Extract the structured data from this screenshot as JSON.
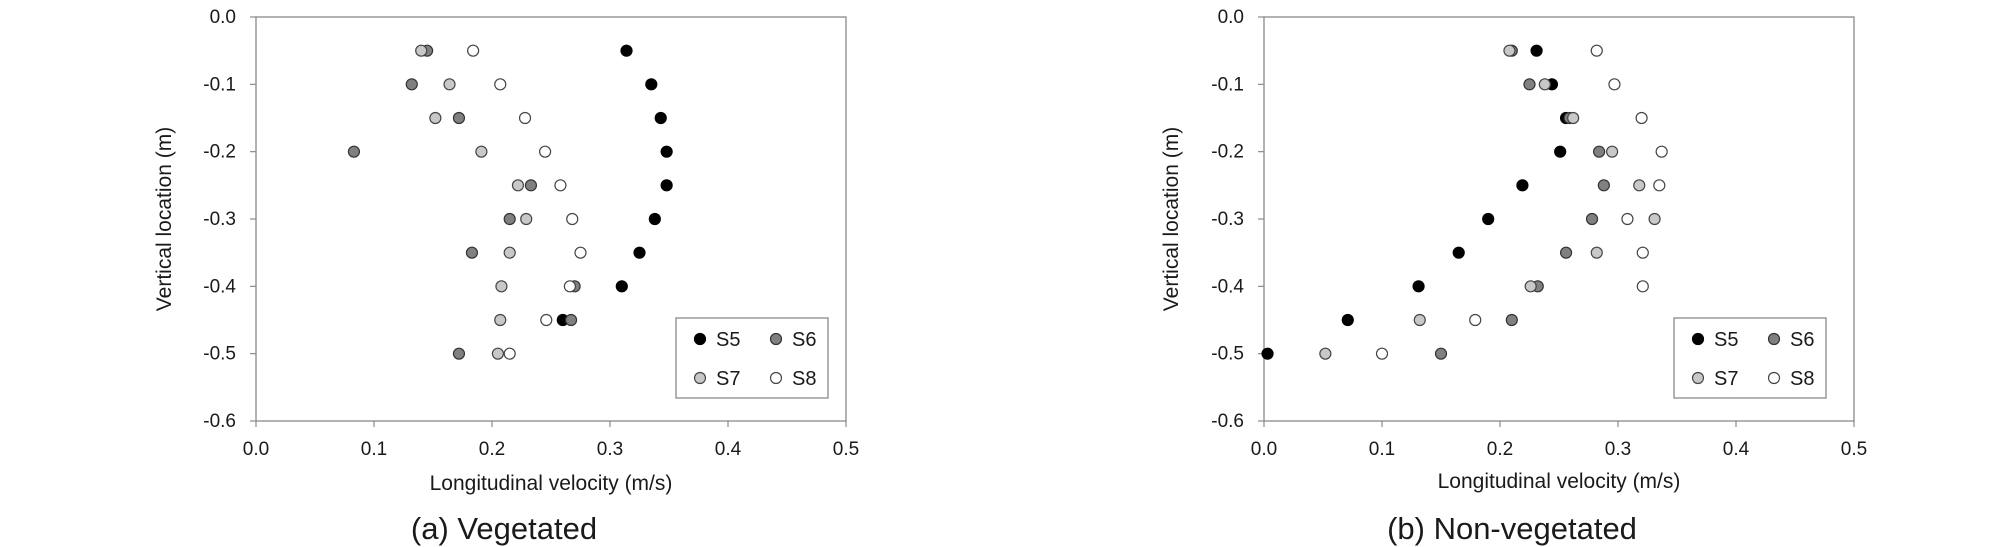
{
  "chart_data": [
    {
      "type": "scatter",
      "caption": "(a) Vegetated",
      "xlabel": "Longitudinal velocity (m/s)",
      "ylabel": "Vertical location (m)",
      "xlim": [
        0,
        0.5
      ],
      "ylim": [
        -0.6,
        0
      ],
      "xticks": [
        "0.0",
        "0.1",
        "0.2",
        "0.3",
        "0.4",
        "0.5"
      ],
      "yticks": [
        "0.0",
        "-0.1",
        "-0.2",
        "-0.3",
        "-0.4",
        "-0.5",
        "-0.6"
      ],
      "grid": false,
      "legend_position": "bottom-right",
      "series": [
        {
          "name": "S5",
          "color": "#000000",
          "stroke": "#000000",
          "points": [
            [
              0.314,
              -0.05
            ],
            [
              0.335,
              -0.1
            ],
            [
              0.343,
              -0.15
            ],
            [
              0.348,
              -0.2
            ],
            [
              0.348,
              -0.25
            ],
            [
              0.338,
              -0.3
            ],
            [
              0.325,
              -0.35
            ],
            [
              0.31,
              -0.4
            ],
            [
              0.26,
              -0.45
            ]
          ]
        },
        {
          "name": "S6",
          "color": "#808080",
          "stroke": "#333333",
          "points": [
            [
              0.145,
              -0.05
            ],
            [
              0.132,
              -0.1
            ],
            [
              0.172,
              -0.15
            ],
            [
              0.083,
              -0.2
            ],
            [
              0.233,
              -0.25
            ],
            [
              0.215,
              -0.3
            ],
            [
              0.183,
              -0.35
            ],
            [
              0.27,
              -0.4
            ],
            [
              0.267,
              -0.45
            ],
            [
              0.172,
              -0.5
            ]
          ]
        },
        {
          "name": "S7",
          "color": "#c8c8c8",
          "stroke": "#444444",
          "points": [
            [
              0.14,
              -0.05
            ],
            [
              0.164,
              -0.1
            ],
            [
              0.152,
              -0.15
            ],
            [
              0.191,
              -0.2
            ],
            [
              0.222,
              -0.25
            ],
            [
              0.229,
              -0.3
            ],
            [
              0.215,
              -0.35
            ],
            [
              0.208,
              -0.4
            ],
            [
              0.207,
              -0.45
            ],
            [
              0.205,
              -0.5
            ]
          ]
        },
        {
          "name": "S8",
          "color": "#ffffff",
          "stroke": "#444444",
          "points": [
            [
              0.184,
              -0.05
            ],
            [
              0.207,
              -0.1
            ],
            [
              0.228,
              -0.15
            ],
            [
              0.245,
              -0.2
            ],
            [
              0.258,
              -0.25
            ],
            [
              0.268,
              -0.3
            ],
            [
              0.275,
              -0.35
            ],
            [
              0.266,
              -0.4
            ],
            [
              0.246,
              -0.45
            ],
            [
              0.215,
              -0.5
            ]
          ]
        }
      ]
    },
    {
      "type": "scatter",
      "caption": "(b) Non-vegetated",
      "xlabel": "Longitudinal velocity (m/s)",
      "ylabel": "Vertical location (m)",
      "xlim": [
        0,
        0.5
      ],
      "ylim": [
        -0.6,
        0
      ],
      "xticks": [
        "0.0",
        "0.1",
        "0.2",
        "0.3",
        "0.4",
        "0.5"
      ],
      "yticks": [
        "0.0",
        "-0.1",
        "-0.2",
        "-0.3",
        "-0.4",
        "-0.5",
        "-0.6"
      ],
      "grid": false,
      "legend_position": "bottom-right",
      "series": [
        {
          "name": "S5",
          "color": "#000000",
          "stroke": "#000000",
          "points": [
            [
              0.231,
              -0.05
            ],
            [
              0.244,
              -0.1
            ],
            [
              0.256,
              -0.15
            ],
            [
              0.251,
              -0.2
            ],
            [
              0.219,
              -0.25
            ],
            [
              0.19,
              -0.3
            ],
            [
              0.165,
              -0.35
            ],
            [
              0.131,
              -0.4
            ],
            [
              0.071,
              -0.45
            ],
            [
              0.003,
              -0.5
            ]
          ]
        },
        {
          "name": "S6",
          "color": "#808080",
          "stroke": "#333333",
          "points": [
            [
              0.21,
              -0.05
            ],
            [
              0.225,
              -0.1
            ],
            [
              0.259,
              -0.15
            ],
            [
              0.284,
              -0.2
            ],
            [
              0.288,
              -0.25
            ],
            [
              0.278,
              -0.3
            ],
            [
              0.256,
              -0.35
            ],
            [
              0.232,
              -0.4
            ],
            [
              0.21,
              -0.45
            ],
            [
              0.15,
              -0.5
            ]
          ]
        },
        {
          "name": "S7",
          "color": "#c8c8c8",
          "stroke": "#444444",
          "points": [
            [
              0.208,
              -0.05
            ],
            [
              0.238,
              -0.1
            ],
            [
              0.262,
              -0.15
            ],
            [
              0.295,
              -0.2
            ],
            [
              0.318,
              -0.25
            ],
            [
              0.331,
              -0.3
            ],
            [
              0.282,
              -0.35
            ],
            [
              0.226,
              -0.4
            ],
            [
              0.132,
              -0.45
            ],
            [
              0.052,
              -0.5
            ]
          ]
        },
        {
          "name": "S8",
          "color": "#ffffff",
          "stroke": "#444444",
          "points": [
            [
              0.282,
              -0.05
            ],
            [
              0.297,
              -0.1
            ],
            [
              0.32,
              -0.15
            ],
            [
              0.337,
              -0.2
            ],
            [
              0.335,
              -0.25
            ],
            [
              0.308,
              -0.3
            ],
            [
              0.321,
              -0.35
            ],
            [
              0.321,
              -0.4
            ],
            [
              0.179,
              -0.45
            ],
            [
              0.1,
              -0.5
            ]
          ]
        }
      ]
    }
  ]
}
